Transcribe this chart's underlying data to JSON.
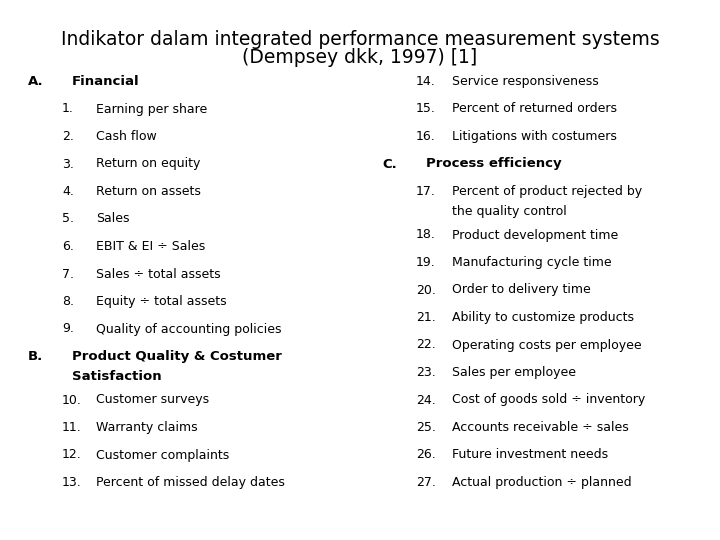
{
  "title_line1": "Indikator dalam integrated performance measurement systems",
  "title_line2": "(Dempsey dkk, 1997) [1]",
  "background_color": "#ffffff",
  "title_fontsize": 13.5,
  "content_fontsize": 9.0,
  "header_fontsize": 9.5,
  "left_col": [
    {
      "type": "header_letter",
      "letter": "A.",
      "text": "Financial",
      "wrap": false
    },
    {
      "type": "item",
      "num": "1.",
      "text": "Earning per share"
    },
    {
      "type": "item",
      "num": "2.",
      "text": "Cash flow"
    },
    {
      "type": "item",
      "num": "3.",
      "text": "Return on equity"
    },
    {
      "type": "item",
      "num": "4.",
      "text": "Return on assets"
    },
    {
      "type": "item",
      "num": "5.",
      "text": "Sales"
    },
    {
      "type": "item",
      "num": "6.",
      "text": "EBIT & EI ÷ Sales"
    },
    {
      "type": "item",
      "num": "7.",
      "text": "Sales ÷ total assets"
    },
    {
      "type": "item",
      "num": "8.",
      "text": "Equity ÷ total assets"
    },
    {
      "type": "item",
      "num": "9.",
      "text": "Quality of accounting policies"
    },
    {
      "type": "header_letter",
      "letter": "B.",
      "text": "Product Quality & Costumer",
      "text2": "Satisfaction",
      "wrap": true
    },
    {
      "type": "item",
      "num": "10.",
      "text": "Customer surveys"
    },
    {
      "type": "item",
      "num": "11.",
      "text": "Warranty claims"
    },
    {
      "type": "item",
      "num": "12.",
      "text": "Customer complaints"
    },
    {
      "type": "item",
      "num": "13.",
      "text": "Percent of missed delay dates"
    }
  ],
  "right_col": [
    {
      "type": "item",
      "num": "14.",
      "text": "Service responsiveness"
    },
    {
      "type": "item",
      "num": "15.",
      "text": "Percent of returned orders"
    },
    {
      "type": "item",
      "num": "16.",
      "text": "Litigations with costumers"
    },
    {
      "type": "header_letter",
      "letter": "C.",
      "text": "Process efficiency",
      "wrap": false
    },
    {
      "type": "item_wrap",
      "num": "17.",
      "text": "Percent of product rejected by",
      "text2": "the quality control"
    },
    {
      "type": "item",
      "num": "18.",
      "text": "Product development time"
    },
    {
      "type": "item",
      "num": "19.",
      "text": "Manufacturing cycle time"
    },
    {
      "type": "item",
      "num": "20.",
      "text": "Order to delivery time"
    },
    {
      "type": "item",
      "num": "21.",
      "text": "Ability to customize products"
    },
    {
      "type": "item",
      "num": "22.",
      "text": "Operating costs per employee"
    },
    {
      "type": "item",
      "num": "23.",
      "text": "Sales per employee"
    },
    {
      "type": "item",
      "num": "24.",
      "text": "Cost of goods sold ÷ inventory"
    },
    {
      "type": "item",
      "num": "25.",
      "text": "Accounts receivable ÷ sales"
    },
    {
      "type": "item",
      "num": "26.",
      "text": "Future investment needs"
    },
    {
      "type": "item",
      "num": "27.",
      "text": "Actual production ÷ planned"
    }
  ],
  "text_color": "#000000",
  "font_family": "DejaVu Sans"
}
